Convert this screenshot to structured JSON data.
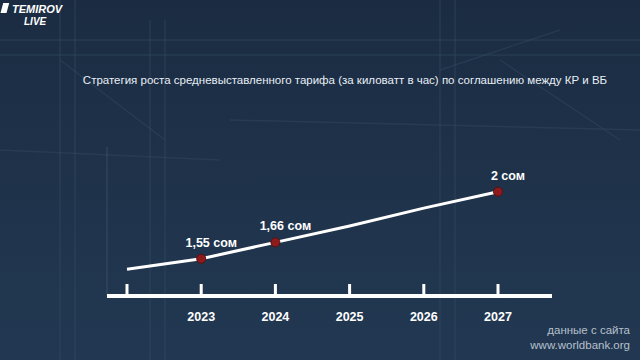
{
  "chart_data": {
    "type": "line",
    "title": "Стратегия роста средневыставленного тарифа (за киловатт в час) по соглашению между КР и ВБ",
    "categories": [
      null,
      "2023",
      "2024",
      "2025",
      "2026",
      "2027"
    ],
    "series": [
      {
        "color": "#ffffff",
        "marker": "circle",
        "values": [
          1.48,
          1.55,
          1.66,
          1.77,
          1.89,
          2
        ],
        "value_labels": [
          null,
          "1,55 сом",
          "1,66 сом",
          null,
          null,
          "2 сом"
        ]
      }
    ],
    "ylim": [
      1.3,
      2.3
    ],
    "yticks": [],
    "grid": false,
    "tick_labels": "x",
    "data_labels": true,
    "annotations": [
      "данные с сайта",
      "www.worldbank.org"
    ]
  },
  "logo": [
    "TEMIROV",
    "LIVE"
  ]
}
